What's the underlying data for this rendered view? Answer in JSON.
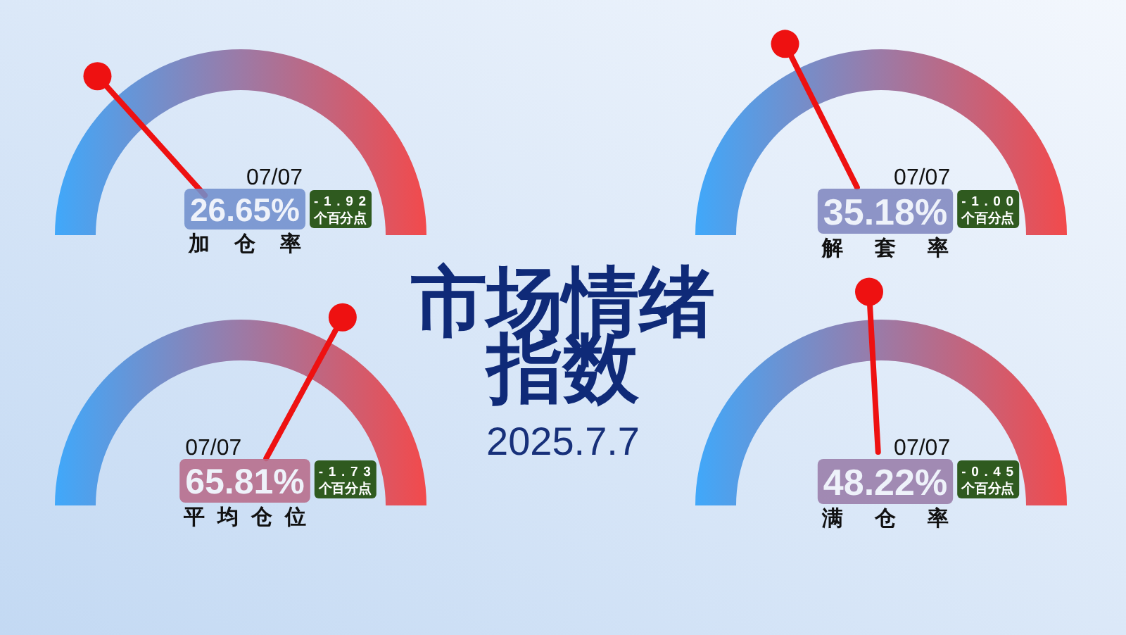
{
  "chart_data": [
    {
      "type": "other",
      "title": "加仓率",
      "values": [
        26.65
      ],
      "value_labels": [
        "26.65%"
      ],
      "annotations": [
        "07/07",
        "-1.92",
        "个百分点"
      ]
    },
    {
      "type": "other",
      "title": "解套率",
      "values": [
        35.18
      ],
      "value_labels": [
        "35.18%"
      ],
      "annotations": [
        "07/07",
        "-1.00",
        "个百分点"
      ]
    },
    {
      "type": "other",
      "title": "市场情绪指数",
      "subtitle": "2025.7.7"
    },
    {
      "type": "other",
      "title": "平均仓位",
      "values": [
        65.81
      ],
      "value_labels": [
        "65.81%"
      ],
      "annotations": [
        "07/07",
        "-1.73",
        "个百分点"
      ]
    },
    {
      "type": "other",
      "title": "满仓率",
      "values": [
        48.22
      ],
      "value_labels": [
        "48.22%"
      ],
      "annotations": [
        "07/07",
        "-0.45",
        "个百分点"
      ]
    }
  ]
}
